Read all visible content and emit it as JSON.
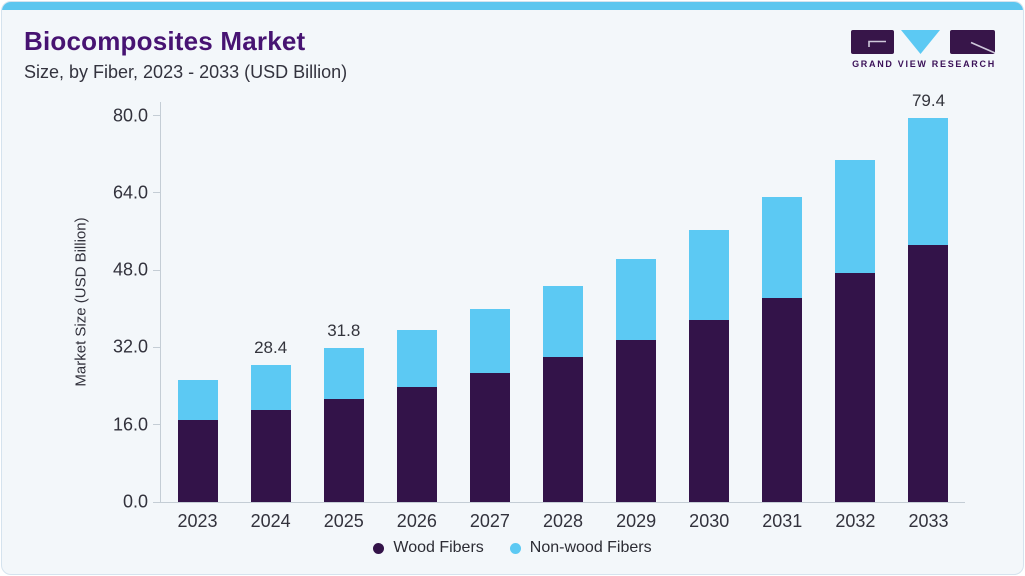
{
  "header": {
    "title": "Biocomposites Market",
    "subtitle": "Size, by Fiber, 2023 - 2033 (USD Billion)"
  },
  "logo": {
    "name": "Grand View Research logo",
    "text": "GRAND VIEW RESEARCH",
    "purple": "#371549",
    "cyan": "#5cc9f3"
  },
  "chart_data": {
    "type": "bar",
    "stacked": true,
    "title": "Biocomposites Market Size, by Fiber, 2023 - 2033 (USD Billion)",
    "xlabel": "",
    "ylabel": "Market Size (USD Billion)",
    "categories": [
      "2023",
      "2024",
      "2025",
      "2026",
      "2027",
      "2028",
      "2029",
      "2030",
      "2031",
      "2032",
      "2033"
    ],
    "series": [
      {
        "name": "Wood Fibers",
        "color": "#331349",
        "values": [
          17.0,
          19.0,
          21.3,
          23.9,
          26.8,
          30.0,
          33.6,
          37.7,
          42.3,
          47.4,
          53.2
        ]
      },
      {
        "name": "Non-wood Fibers",
        "color": "#5cc9f3",
        "values": [
          8.3,
          9.4,
          10.5,
          11.8,
          13.2,
          14.8,
          16.6,
          18.6,
          20.8,
          23.4,
          26.2
        ]
      }
    ],
    "totals": [
      25.3,
      28.4,
      31.8,
      35.7,
      40.0,
      44.8,
      50.2,
      56.3,
      63.1,
      70.8,
      79.4
    ],
    "total_labels_shown": {
      "2024": "28.4",
      "2025": "31.8",
      "2033": "79.4"
    },
    "ytick_values": [
      0,
      16,
      32,
      48,
      64,
      80
    ],
    "ytick_labels": [
      "0.0",
      "16.0",
      "32.0",
      "48.0",
      "64.0",
      "80.0"
    ],
    "ylim": [
      0,
      83
    ],
    "grid": false,
    "legend_position": "bottom"
  },
  "colors": {
    "card_background": "#f3f7fa",
    "top_accent": "#5cc6ef",
    "title_text": "#471372",
    "axis_line": "#c4cdd5",
    "axis_text": "#32323c"
  }
}
